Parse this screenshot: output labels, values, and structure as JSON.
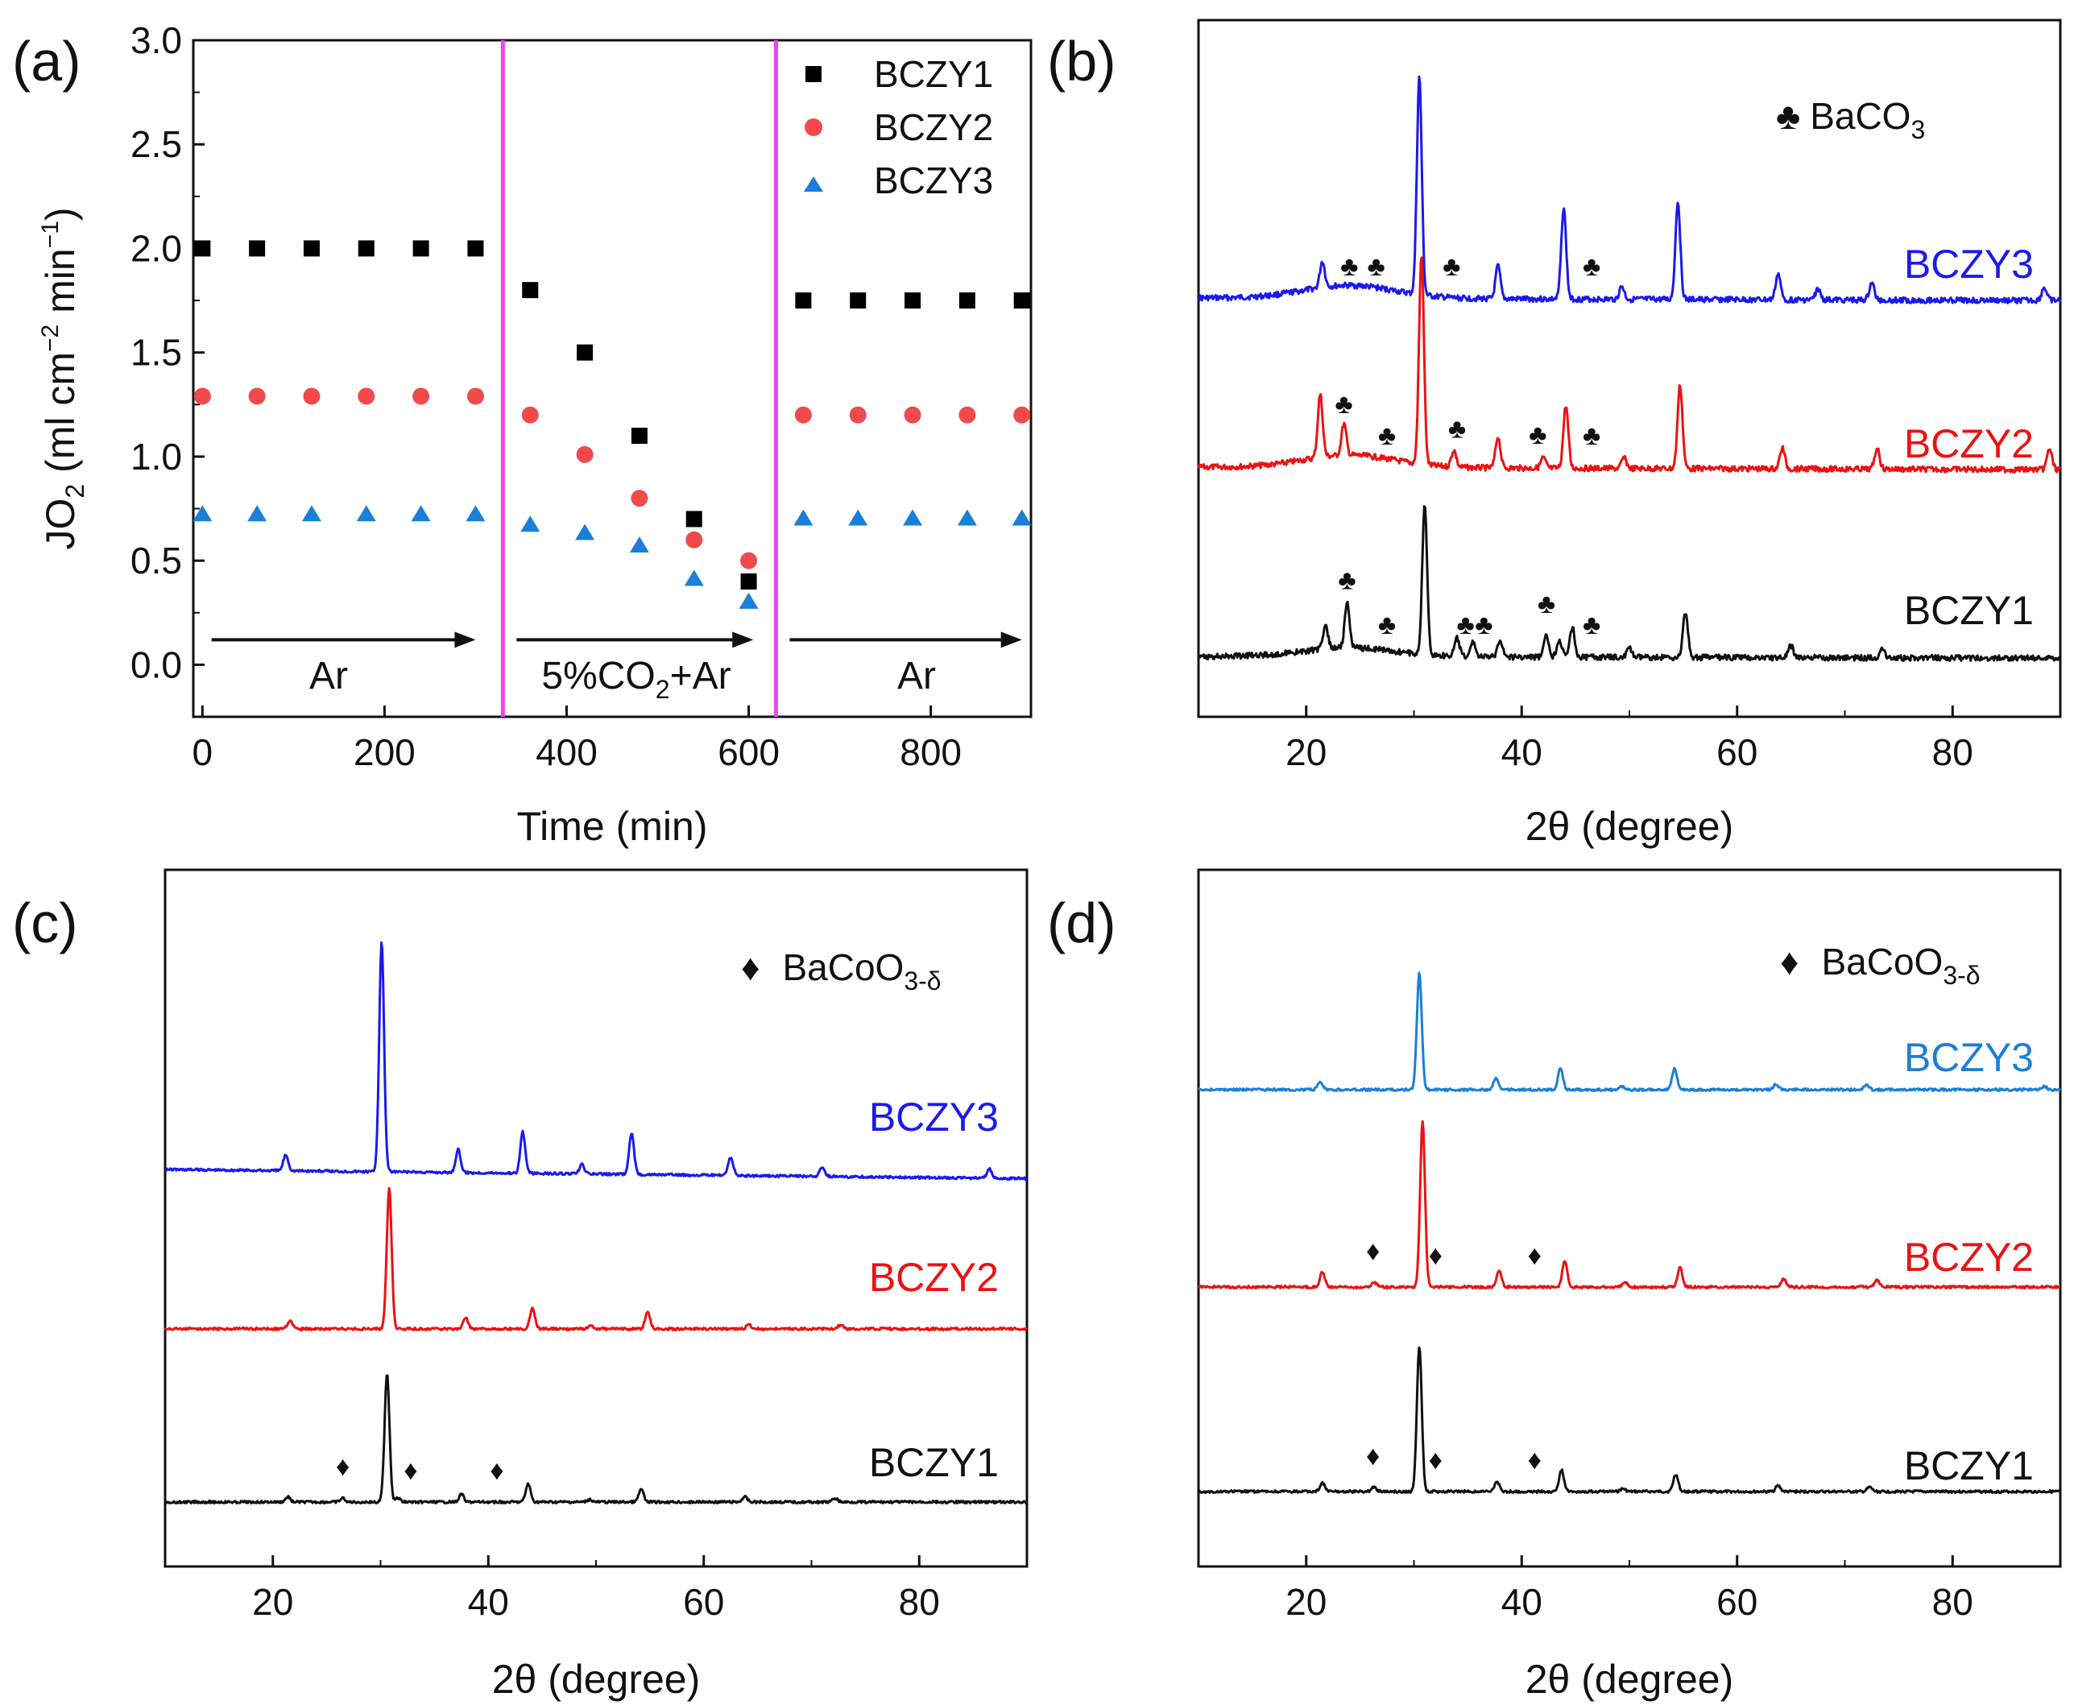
{
  "chart_data": [
    {
      "panel": "(a)",
      "type": "scatter",
      "xlabel": "Time (min)",
      "ylabel": "JO2 (ml cm−2 min−1)",
      "xlim": [
        -10,
        910
      ],
      "ylim": [
        -0.25,
        3.0
      ],
      "x_ticks": [
        "0",
        "200",
        "400",
        "600",
        "800"
      ],
      "y_ticks": [
        "0.0",
        "0.5",
        "1.0",
        "1.5",
        "2.0",
        "2.5",
        "3.0"
      ],
      "x": [
        0,
        60,
        120,
        180,
        240,
        300,
        360,
        420,
        480,
        540,
        600,
        660,
        720,
        780,
        840,
        900
      ],
      "series": [
        {
          "name": "BCZY1",
          "marker": "square",
          "color": "#000000",
          "values": [
            2.0,
            2.0,
            2.0,
            2.0,
            2.0,
            2.0,
            1.8,
            1.5,
            1.1,
            0.7,
            0.4,
            1.75,
            1.75,
            1.75,
            1.75,
            1.75
          ]
        },
        {
          "name": "BCZY2",
          "marker": "circle",
          "color": "#f04a4a",
          "values": [
            1.29,
            1.29,
            1.29,
            1.29,
            1.29,
            1.29,
            1.2,
            1.01,
            0.8,
            0.6,
            0.5,
            1.2,
            1.2,
            1.2,
            1.2,
            1.2
          ]
        },
        {
          "name": "BCZY3",
          "marker": "triangle",
          "color": "#1a7fd8",
          "values": [
            0.72,
            0.72,
            0.72,
            0.72,
            0.72,
            0.72,
            0.67,
            0.63,
            0.57,
            0.41,
            0.3,
            0.7,
            0.7,
            0.7,
            0.7,
            0.7
          ]
        }
      ],
      "dividers_x": [
        330,
        630
      ],
      "divider_color": "#ee44ee",
      "regions": [
        {
          "label": "Ar",
          "arrow_from": 10,
          "arrow_to": 300
        },
        {
          "label": "5%CO2+Ar",
          "arrow_from": 345,
          "arrow_to": 605
        },
        {
          "label": "Ar",
          "arrow_from": 645,
          "arrow_to": 900
        }
      ],
      "legend_position": "top-right"
    },
    {
      "panel": "(b)",
      "type": "line",
      "xlabel": "2θ (degree)",
      "xlim": [
        10,
        90
      ],
      "x_ticks": [
        "20",
        "40",
        "60",
        "80"
      ],
      "legend": {
        "symbol": "♣",
        "text": "BaCO3"
      },
      "marker_symbol": "♣",
      "series": [
        {
          "name": "BCZY3",
          "color": "#1a1aee",
          "peaks": [
            [
              21.5,
              0.12
            ],
            [
              30.5,
              1.0
            ],
            [
              37.8,
              0.15
            ],
            [
              43.9,
              0.42
            ],
            [
              49.3,
              0.06
            ],
            [
              54.5,
              0.45
            ],
            [
              63.8,
              0.12
            ],
            [
              67.5,
              0.05
            ],
            [
              72.5,
              0.08
            ],
            [
              88.5,
              0.06
            ]
          ],
          "markers": [
            24,
            26.5,
            33.5,
            46.5
          ]
        },
        {
          "name": "BCZY2",
          "color": "#ee1111",
          "peaks": [
            [
              21.3,
              0.3
            ],
            [
              23.5,
              0.15
            ],
            [
              30.7,
              1.0
            ],
            [
              33.7,
              0.08
            ],
            [
              37.8,
              0.15
            ],
            [
              42,
              0.05
            ],
            [
              44.1,
              0.3
            ],
            [
              49.5,
              0.05
            ],
            [
              54.7,
              0.4
            ],
            [
              64.2,
              0.1
            ],
            [
              73,
              0.1
            ],
            [
              89,
              0.1
            ]
          ],
          "markers": [
            23.5,
            27.5,
            34,
            41.5,
            46.5
          ]
        },
        {
          "name": "BCZY1",
          "color": "#111111",
          "peaks": [
            [
              21.8,
              0.15
            ],
            [
              23.8,
              0.3
            ],
            [
              31,
              1.0
            ],
            [
              34,
              0.12
            ],
            [
              35.5,
              0.1
            ],
            [
              38,
              0.12
            ],
            [
              42.3,
              0.14
            ],
            [
              43.5,
              0.12
            ],
            [
              44.7,
              0.2
            ],
            [
              50,
              0.06
            ],
            [
              55.2,
              0.3
            ],
            [
              65,
              0.08
            ],
            [
              73.5,
              0.07
            ]
          ],
          "markers": [
            23.8,
            27.5,
            34.8,
            36.5,
            42.3,
            46.5
          ]
        }
      ]
    },
    {
      "panel": "(c)",
      "type": "line",
      "xlabel": "2θ (degree)",
      "xlim": [
        10,
        90
      ],
      "x_ticks": [
        "20",
        "40",
        "60",
        "80"
      ],
      "legend": {
        "symbol": "♦",
        "text": "BaCoO3-δ"
      },
      "marker_symbol": "♦",
      "series": [
        {
          "name": "BCZY3",
          "color": "#1a1aee",
          "peaks": [
            [
              21.2,
              0.07
            ],
            [
              30.1,
              1.0
            ],
            [
              37.2,
              0.1
            ],
            [
              43.2,
              0.18
            ],
            [
              48.7,
              0.04
            ],
            [
              53.3,
              0.18
            ],
            [
              62.5,
              0.08
            ],
            [
              71,
              0.04
            ],
            [
              86.5,
              0.04
            ]
          ],
          "markers": []
        },
        {
          "name": "BCZY2",
          "color": "#ee1111",
          "peaks": [
            [
              21.6,
              0.06
            ],
            [
              30.8,
              1.0
            ],
            [
              37.9,
              0.08
            ],
            [
              44.1,
              0.15
            ],
            [
              49.5,
              0.03
            ],
            [
              54.8,
              0.12
            ],
            [
              64.2,
              0.03
            ],
            [
              72.7,
              0.03
            ]
          ],
          "markers": []
        },
        {
          "name": "BCZY1",
          "color": "#111111",
          "peaks": [
            [
              21.4,
              0.04
            ],
            [
              26.5,
              0.03
            ],
            [
              30.6,
              1.0
            ],
            [
              31.6,
              0.03
            ],
            [
              37.5,
              0.06
            ],
            [
              43.7,
              0.14
            ],
            [
              49.4,
              0.02
            ],
            [
              54.2,
              0.1
            ],
            [
              63.8,
              0.04
            ],
            [
              72.2,
              0.03
            ]
          ],
          "markers": [
            26.5,
            32.8,
            40.8
          ]
        }
      ]
    },
    {
      "panel": "(d)",
      "type": "line",
      "xlabel": "2θ (degree)",
      "xlim": [
        10,
        90
      ],
      "x_ticks": [
        "20",
        "40",
        "60",
        "80"
      ],
      "legend": {
        "symbol": "♦",
        "text": "BaCoO3-δ"
      },
      "marker_symbol": "♦",
      "series": [
        {
          "name": "BCZY3",
          "color": "#1a7fd8",
          "peaks": [
            [
              21.3,
              0.06
            ],
            [
              30.5,
              1.0
            ],
            [
              37.6,
              0.1
            ],
            [
              43.6,
              0.18
            ],
            [
              49.3,
              0.03
            ],
            [
              54.2,
              0.18
            ],
            [
              63.6,
              0.05
            ],
            [
              72,
              0.04
            ],
            [
              88.5,
              0.03
            ]
          ],
          "markers": []
        },
        {
          "name": "BCZY2",
          "color": "#ee1111",
          "peaks": [
            [
              21.5,
              0.09
            ],
            [
              26.3,
              0.03
            ],
            [
              30.8,
              1.0
            ],
            [
              37.9,
              0.1
            ],
            [
              44,
              0.16
            ],
            [
              49.6,
              0.03
            ],
            [
              54.7,
              0.12
            ],
            [
              64.3,
              0.05
            ],
            [
              73,
              0.04
            ]
          ],
          "markers": [
            26.2,
            32,
            41.2
          ]
        },
        {
          "name": "BCZY1",
          "color": "#111111",
          "peaks": [
            [
              21.5,
              0.06
            ],
            [
              26.3,
              0.03
            ],
            [
              30.5,
              1.0
            ],
            [
              37.7,
              0.07
            ],
            [
              43.7,
              0.15
            ],
            [
              49.4,
              0.02
            ],
            [
              54.3,
              0.12
            ],
            [
              63.8,
              0.04
            ],
            [
              72.3,
              0.03
            ]
          ],
          "markers": [
            26.2,
            32,
            41.2
          ]
        }
      ]
    }
  ],
  "text": {
    "a": {
      "letter": "(a)",
      "xlabel": "Time (min)",
      "ylabel_main": "JO",
      "ylabel_sub": "2",
      "ylabel_open": " (ml cm",
      "ylabel_sup1": "−2",
      "ylabel_mid": " min",
      "ylabel_sup2": "−1",
      "ylabel_close": ")",
      "region1": "Ar",
      "region2_pre": "5%CO",
      "region2_sub": "2",
      "region2_post": "+Ar",
      "region3": "Ar",
      "legend1": "BCZY1",
      "legend2": "BCZY2",
      "legend3": "BCZY3"
    },
    "b": {
      "letter": "(b)",
      "xlabel": "2θ (degree)",
      "legend_symbol": "♣",
      "legend_main": "BaCO",
      "legend_sub": "3",
      "label1": "BCZY3",
      "label2": "BCZY2",
      "label3": "BCZY1"
    },
    "c": {
      "letter": "(c)",
      "xlabel": "2θ (degree)",
      "legend_symbol": "♦",
      "legend_main": "BaCoO",
      "legend_sub": "3-δ",
      "label1": "BCZY3",
      "label2": "BCZY2",
      "label3": "BCZY1"
    },
    "d": {
      "letter": "(d)",
      "xlabel": "2θ (degree)",
      "legend_symbol": "♦",
      "legend_main": "BaCoO",
      "legend_sub": "3-δ",
      "label1": "BCZY3",
      "label2": "BCZY2",
      "label3": "BCZY1"
    }
  }
}
